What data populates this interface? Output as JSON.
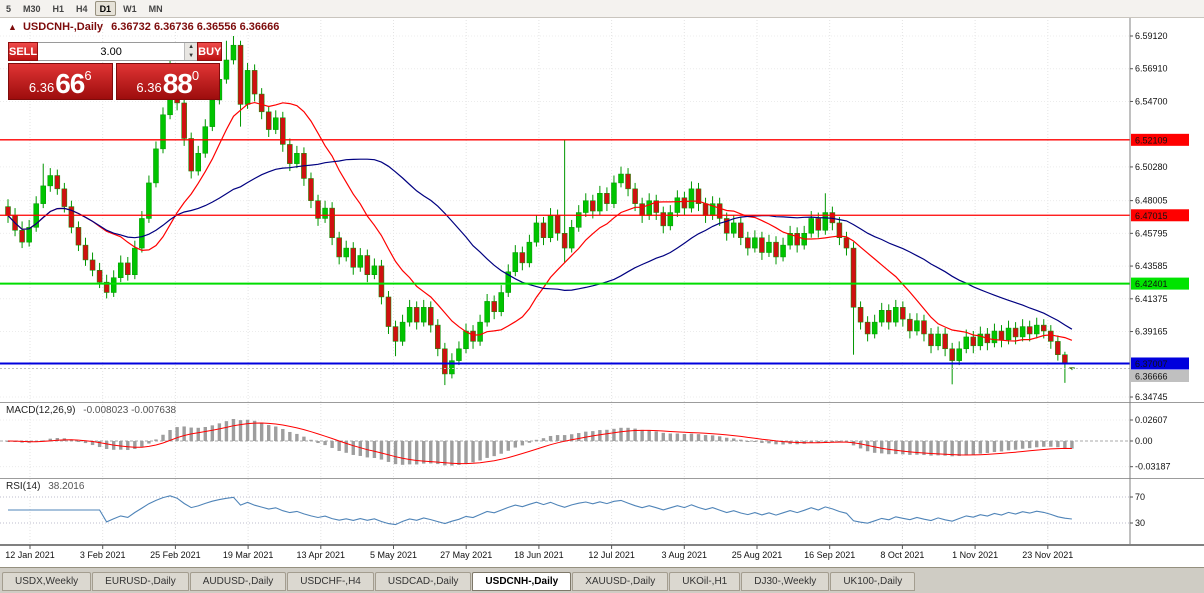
{
  "toolbar": {
    "timeframes": [
      {
        "label": "5",
        "active": false
      },
      {
        "label": "M30",
        "active": false
      },
      {
        "label": "H1",
        "active": false
      },
      {
        "label": "H4",
        "active": false
      },
      {
        "label": "D1",
        "active": true
      },
      {
        "label": "W1",
        "active": false
      },
      {
        "label": "MN",
        "active": false
      }
    ]
  },
  "chart_header": {
    "collapse_icon": "▲",
    "title": "USDCNH-,Daily",
    "ohlc": "6.36732 6.36736 6.36556 6.36666"
  },
  "one_click": {
    "sell_label": "SELL",
    "buy_label": "BUY",
    "volume": "3.00",
    "spinner_up_icon": "▲",
    "spinner_down_icon": "▼",
    "sell_price": {
      "small": "6.36",
      "big": "66",
      "sup": "6"
    },
    "buy_price": {
      "small": "6.36",
      "big": "88",
      "sup": "0"
    }
  },
  "tabs": [
    {
      "label": "USDX,Weekly",
      "active": false
    },
    {
      "label": "EURUSD-,Daily",
      "active": false
    },
    {
      "label": "AUDUSD-,Daily",
      "active": false
    },
    {
      "label": "USDCHF-,H4",
      "active": false
    },
    {
      "label": "USDCAD-,Daily",
      "active": false
    },
    {
      "label": "USDCNH-,Daily",
      "active": true
    },
    {
      "label": "XAUUSD-,Daily",
      "active": false
    },
    {
      "label": "UKOil-,H1",
      "active": false
    },
    {
      "label": "DJ30-,Weekly",
      "active": false
    },
    {
      "label": "UK100-,Daily",
      "active": false
    }
  ],
  "colors": {
    "bull": "#00c400",
    "bear": "#d01010",
    "wick": "#009600",
    "ma_fast": "#ff0000",
    "ma_slow": "#000080",
    "macd_hist": "#9e9e9e",
    "macd_signal": "#ff0000",
    "rsi_line": "#4f84b8",
    "bid_box": "#c0c0c0"
  },
  "chart_data": {
    "type": "candlestick",
    "symbol": "USDCNH-",
    "timeframe": "Daily",
    "visible_last_ohlc": {
      "open": "6.36732",
      "high": "6.36736",
      "low": "6.36556",
      "close": "6.36666"
    },
    "price_axis_ticks": [
      "6.59120",
      "6.56910",
      "6.54700",
      "6.50280",
      "6.48005",
      "6.45795",
      "6.43585",
      "6.41375",
      "6.39165",
      "6.34745"
    ],
    "horizontal_levels": [
      {
        "price": 6.52109,
        "label": "6.52109",
        "line_color": "#ff0000",
        "box_color": "#ff0000",
        "text_color": "#ffffff",
        "width": 1.3
      },
      {
        "price": 6.47015,
        "label": "6.47015",
        "line_color": "#ff0000",
        "box_color": "#ff0000",
        "text_color": "#ffffff",
        "width": 1.3
      },
      {
        "price": 6.42401,
        "label": "6.42401",
        "line_color": "#00dd00",
        "box_color": "#00e400",
        "text_color": "#000000",
        "width": 2
      },
      {
        "price": 6.37007,
        "label": "6.37007",
        "line_color": "#0000dd",
        "box_color": "#0000dd",
        "text_color": "#ffffff",
        "width": 2
      }
    ],
    "bid": {
      "price": 6.36666,
      "label": "6.36666"
    },
    "x_axis_dates": [
      "12 Jan 2021",
      "3 Feb 2021",
      "25 Feb 2021",
      "19 Mar 2021",
      "13 Apr 2021",
      "5 May 2021",
      "27 May 2021",
      "18 Jun 2021",
      "12 Jul 2021",
      "3 Aug 2021",
      "25 Aug 2021",
      "16 Sep 2021",
      "8 Oct 2021",
      "1 Nov 2021",
      "23 Nov 2021"
    ],
    "indicators": [
      {
        "name": "MACD",
        "label": "MACD(12,26,9)",
        "values": "-0.008023 -0.007638",
        "scale_ticks": [
          "0.02607",
          "0.00",
          "-0.03187"
        ]
      },
      {
        "name": "RSI",
        "label": "RSI(14)",
        "values": "38.2016",
        "levels": [
          "70",
          "30"
        ]
      }
    ],
    "candles": [
      [
        6.476,
        6.481,
        6.465,
        6.47
      ],
      [
        6.47,
        6.475,
        6.456,
        6.46
      ],
      [
        6.46,
        6.466,
        6.448,
        6.452
      ],
      [
        6.452,
        6.467,
        6.449,
        6.462
      ],
      [
        6.462,
        6.483,
        6.459,
        6.478
      ],
      [
        6.478,
        6.505,
        6.475,
        6.49
      ],
      [
        6.49,
        6.502,
        6.486,
        6.497
      ],
      [
        6.497,
        6.501,
        6.484,
        6.488
      ],
      [
        6.488,
        6.492,
        6.472,
        6.476
      ],
      [
        6.476,
        6.48,
        6.458,
        6.462
      ],
      [
        6.462,
        6.466,
        6.446,
        6.45
      ],
      [
        6.45,
        6.455,
        6.436,
        6.44
      ],
      [
        6.44,
        6.445,
        6.429,
        6.433
      ],
      [
        6.433,
        6.438,
        6.421,
        6.425
      ],
      [
        6.425,
        6.43,
        6.414,
        6.418
      ],
      [
        6.418,
        6.433,
        6.415,
        6.428
      ],
      [
        6.428,
        6.443,
        6.425,
        6.438
      ],
      [
        6.438,
        6.442,
        6.426,
        6.43
      ],
      [
        6.43,
        6.453,
        6.427,
        6.448
      ],
      [
        6.448,
        6.473,
        6.445,
        6.468
      ],
      [
        6.468,
        6.497,
        6.465,
        6.492
      ],
      [
        6.492,
        6.52,
        6.489,
        6.515
      ],
      [
        6.515,
        6.543,
        6.512,
        6.538
      ],
      [
        6.538,
        6.5765,
        6.535,
        6.556
      ],
      [
        6.556,
        6.56,
        6.541,
        6.546
      ],
      [
        6.546,
        6.55,
        6.517,
        6.522
      ],
      [
        6.522,
        6.526,
        6.495,
        6.5
      ],
      [
        6.5,
        6.517,
        6.497,
        6.512
      ],
      [
        6.512,
        6.535,
        6.509,
        6.53
      ],
      [
        6.53,
        6.553,
        6.527,
        6.548
      ],
      [
        6.548,
        6.567,
        6.545,
        6.562
      ],
      [
        6.562,
        6.588,
        6.559,
        6.575
      ],
      [
        6.575,
        6.5912,
        6.572,
        6.585
      ],
      [
        6.585,
        6.588,
        6.53,
        6.545
      ],
      [
        6.545,
        6.573,
        6.542,
        6.568
      ],
      [
        6.568,
        6.572,
        6.547,
        6.552
      ],
      [
        6.552,
        6.556,
        6.535,
        6.54
      ],
      [
        6.54,
        6.544,
        6.523,
        6.528
      ],
      [
        6.528,
        6.541,
        6.525,
        6.536
      ],
      [
        6.536,
        6.54,
        6.513,
        6.518
      ],
      [
        6.518,
        6.522,
        6.5,
        6.505
      ],
      [
        6.505,
        6.517,
        6.502,
        6.512
      ],
      [
        6.512,
        6.516,
        6.49,
        6.495
      ],
      [
        6.495,
        6.499,
        6.475,
        6.48
      ],
      [
        6.48,
        6.484,
        6.463,
        6.468
      ],
      [
        6.468,
        6.48,
        6.465,
        6.475
      ],
      [
        6.475,
        6.479,
        6.45,
        6.455
      ],
      [
        6.455,
        6.459,
        6.437,
        6.442
      ],
      [
        6.442,
        6.453,
        6.439,
        6.448
      ],
      [
        6.448,
        6.452,
        6.43,
        6.435
      ],
      [
        6.435,
        6.448,
        6.432,
        6.443
      ],
      [
        6.443,
        6.447,
        6.425,
        6.43
      ],
      [
        6.43,
        6.441,
        6.427,
        6.436
      ],
      [
        6.436,
        6.44,
        6.41,
        6.415
      ],
      [
        6.415,
        6.419,
        6.39,
        6.395
      ],
      [
        6.395,
        6.399,
        6.375,
        6.385
      ],
      [
        6.385,
        6.403,
        6.382,
        6.398
      ],
      [
        6.398,
        6.413,
        6.395,
        6.408
      ],
      [
        6.408,
        6.412,
        6.393,
        6.398
      ],
      [
        6.398,
        6.413,
        6.395,
        6.408
      ],
      [
        6.408,
        6.412,
        6.391,
        6.396
      ],
      [
        6.396,
        6.4,
        6.375,
        6.38
      ],
      [
        6.38,
        6.384,
        6.3555,
        6.363
      ],
      [
        6.363,
        6.377,
        6.36,
        6.372
      ],
      [
        6.372,
        6.385,
        6.369,
        6.38
      ],
      [
        6.38,
        6.397,
        6.377,
        6.392
      ],
      [
        6.392,
        6.396,
        6.38,
        6.385
      ],
      [
        6.385,
        6.403,
        6.382,
        6.398
      ],
      [
        6.398,
        6.417,
        6.395,
        6.412
      ],
      [
        6.412,
        6.416,
        6.4,
        6.405
      ],
      [
        6.405,
        6.423,
        6.402,
        6.418
      ],
      [
        6.418,
        6.437,
        6.415,
        6.432
      ],
      [
        6.432,
        6.45,
        6.429,
        6.445
      ],
      [
        6.445,
        6.449,
        6.433,
        6.438
      ],
      [
        6.438,
        6.457,
        6.435,
        6.452
      ],
      [
        6.452,
        6.47,
        6.449,
        6.465
      ],
      [
        6.465,
        6.469,
        6.45,
        6.455
      ],
      [
        6.455,
        6.475,
        6.452,
        6.47
      ],
      [
        6.47,
        6.474,
        6.453,
        6.458
      ],
      [
        6.458,
        6.5211,
        6.438,
        6.448
      ],
      [
        6.448,
        6.467,
        6.445,
        6.462
      ],
      [
        6.462,
        6.477,
        6.459,
        6.472
      ],
      [
        6.472,
        6.485,
        6.469,
        6.48
      ],
      [
        6.48,
        6.484,
        6.468,
        6.473
      ],
      [
        6.473,
        6.49,
        6.47,
        6.485
      ],
      [
        6.485,
        6.489,
        6.473,
        6.478
      ],
      [
        6.478,
        6.497,
        6.475,
        6.492
      ],
      [
        6.492,
        6.503,
        6.489,
        6.498
      ],
      [
        6.498,
        6.502,
        6.483,
        6.488
      ],
      [
        6.488,
        6.492,
        6.473,
        6.478
      ],
      [
        6.478,
        6.482,
        6.465,
        6.47
      ],
      [
        6.47,
        6.485,
        6.467,
        6.48
      ],
      [
        6.48,
        6.484,
        6.467,
        6.472
      ],
      [
        6.472,
        6.476,
        6.458,
        6.463
      ],
      [
        6.463,
        6.477,
        6.46,
        6.472
      ],
      [
        6.472,
        6.487,
        6.469,
        6.482
      ],
      [
        6.482,
        6.486,
        6.47,
        6.475
      ],
      [
        6.475,
        6.493,
        6.472,
        6.488
      ],
      [
        6.488,
        6.492,
        6.473,
        6.478
      ],
      [
        6.478,
        6.482,
        6.465,
        6.47
      ],
      [
        6.47,
        6.483,
        6.467,
        6.478
      ],
      [
        6.478,
        6.482,
        6.463,
        6.468
      ],
      [
        6.468,
        6.472,
        6.453,
        6.458
      ],
      [
        6.458,
        6.47,
        6.455,
        6.465
      ],
      [
        6.465,
        6.469,
        6.45,
        6.455
      ],
      [
        6.455,
        6.459,
        6.443,
        6.448
      ],
      [
        6.448,
        6.46,
        6.445,
        6.455
      ],
      [
        6.455,
        6.459,
        6.44,
        6.445
      ],
      [
        6.445,
        6.457,
        6.442,
        6.452
      ],
      [
        6.452,
        6.456,
        6.437,
        6.442
      ],
      [
        6.442,
        6.455,
        6.439,
        6.45
      ],
      [
        6.45,
        6.463,
        6.447,
        6.458
      ],
      [
        6.458,
        6.462,
        6.445,
        6.45
      ],
      [
        6.45,
        6.463,
        6.447,
        6.458
      ],
      [
        6.458,
        6.473,
        6.455,
        6.468
      ],
      [
        6.468,
        6.472,
        6.455,
        6.46
      ],
      [
        6.46,
        6.485,
        6.457,
        6.472
      ],
      [
        6.472,
        6.476,
        6.46,
        6.465
      ],
      [
        6.465,
        6.469,
        6.45,
        6.455
      ],
      [
        6.455,
        6.459,
        6.443,
        6.448
      ],
      [
        6.448,
        6.452,
        6.376,
        6.408
      ],
      [
        6.408,
        6.412,
        6.393,
        6.398
      ],
      [
        6.398,
        6.402,
        6.385,
        6.39
      ],
      [
        6.39,
        6.403,
        6.387,
        6.398
      ],
      [
        6.398,
        6.411,
        6.395,
        6.406
      ],
      [
        6.406,
        6.41,
        6.393,
        6.398
      ],
      [
        6.398,
        6.413,
        6.395,
        6.408
      ],
      [
        6.408,
        6.412,
        6.395,
        6.4
      ],
      [
        6.4,
        6.404,
        6.387,
        6.392
      ],
      [
        6.392,
        6.404,
        6.389,
        6.399
      ],
      [
        6.399,
        6.403,
        6.385,
        6.39
      ],
      [
        6.39,
        6.394,
        6.377,
        6.382
      ],
      [
        6.382,
        6.395,
        6.379,
        6.39
      ],
      [
        6.39,
        6.394,
        6.375,
        6.38
      ],
      [
        6.38,
        6.384,
        6.356,
        6.372
      ],
      [
        6.372,
        6.385,
        6.369,
        6.38
      ],
      [
        6.38,
        6.393,
        6.377,
        6.388
      ],
      [
        6.388,
        6.392,
        6.377,
        6.382
      ],
      [
        6.382,
        6.395,
        6.379,
        6.39
      ],
      [
        6.39,
        6.394,
        6.379,
        6.384
      ],
      [
        6.384,
        6.397,
        6.381,
        6.392
      ],
      [
        6.392,
        6.396,
        6.381,
        6.386
      ],
      [
        6.386,
        6.399,
        6.383,
        6.394
      ],
      [
        6.394,
        6.398,
        6.383,
        6.388
      ],
      [
        6.388,
        6.4,
        6.385,
        6.395
      ],
      [
        6.395,
        6.399,
        6.385,
        6.39
      ],
      [
        6.39,
        6.401,
        6.387,
        6.396
      ],
      [
        6.396,
        6.4,
        6.387,
        6.392
      ],
      [
        6.392,
        6.396,
        6.38,
        6.385
      ],
      [
        6.385,
        6.389,
        6.372,
        6.376
      ],
      [
        6.376,
        6.378,
        6.357,
        6.37
      ],
      [
        6.3673,
        6.3674,
        6.3656,
        6.3667
      ]
    ]
  }
}
